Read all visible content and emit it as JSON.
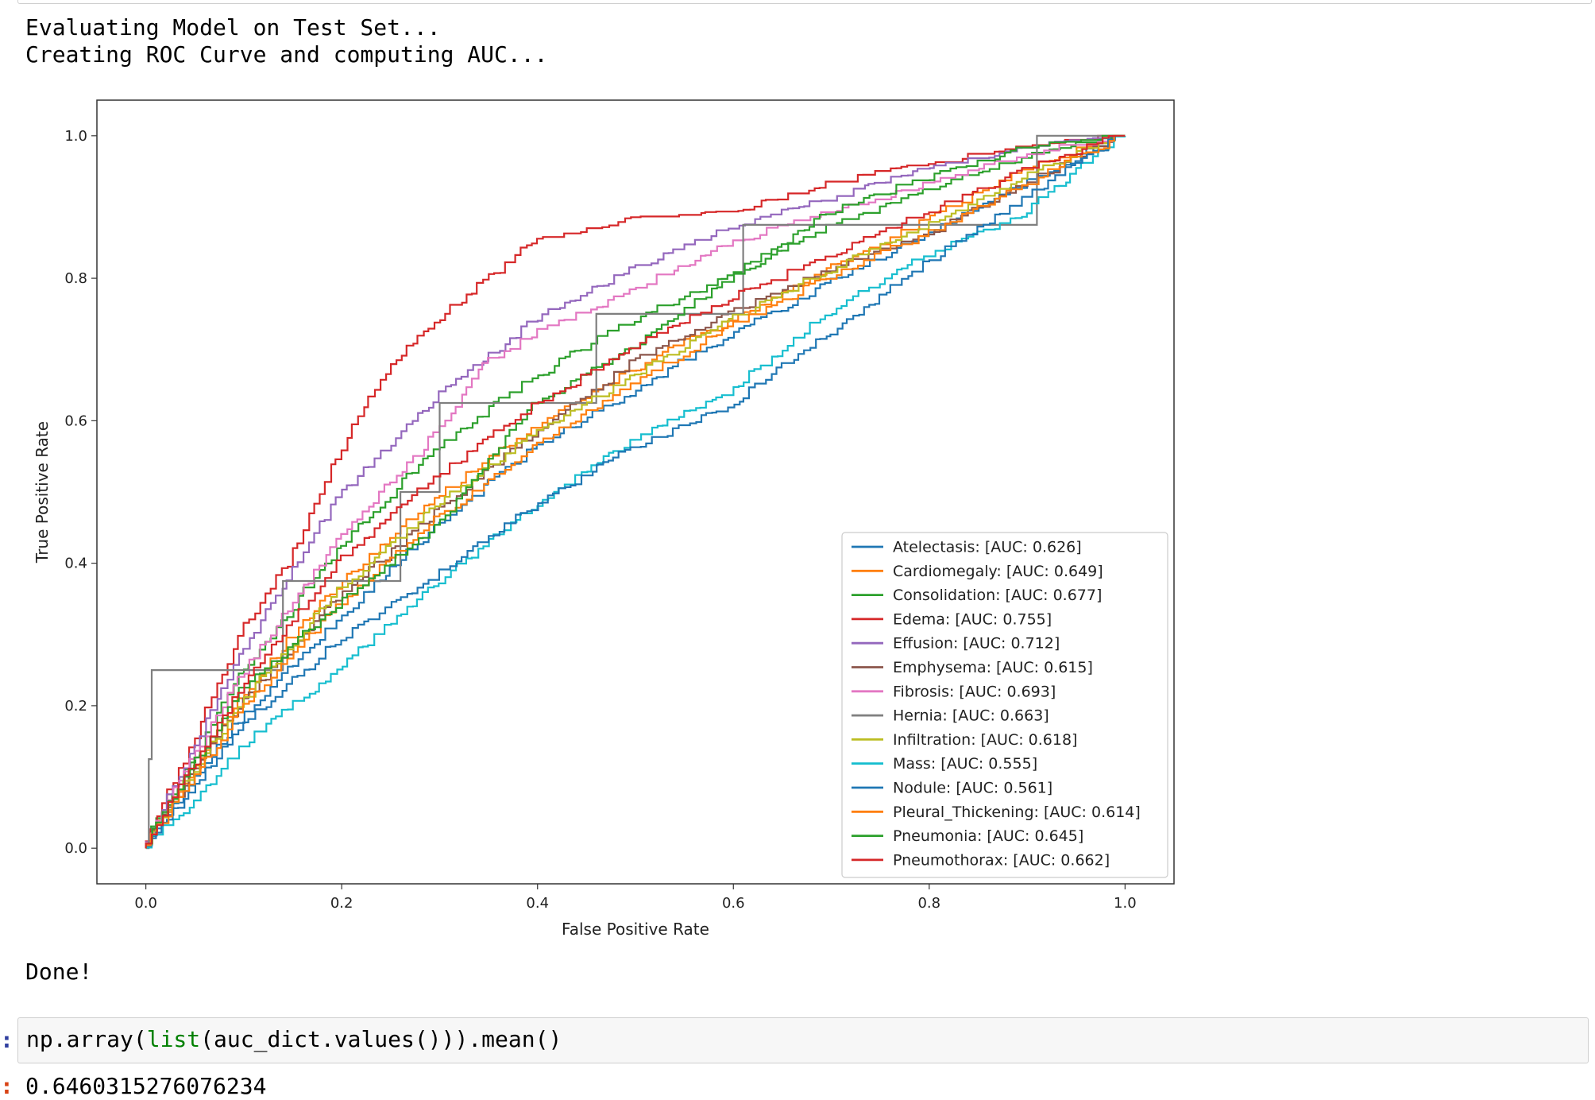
{
  "output": {
    "stream_lines": [
      "Evaluating Model on Test Set...",
      "Creating ROC Curve and computing AUC..."
    ],
    "done_text": "Done!"
  },
  "input_cell": {
    "prompt": ":",
    "code_prefix": "np.array(",
    "code_builtin": "list",
    "code_suffix": "(auc_dict.values())).mean()"
  },
  "result": {
    "prompt": ":",
    "value": "0.6460315276076234"
  },
  "chart_data": {
    "type": "line",
    "title": "",
    "xlabel": "False Positive Rate",
    "ylabel": "True Positive Rate",
    "xlim": [
      -0.05,
      1.05
    ],
    "ylim": [
      -0.05,
      1.05
    ],
    "xticks": [
      "0.0",
      "0.2",
      "0.4",
      "0.6",
      "0.8",
      "1.0"
    ],
    "yticks": [
      "0.0",
      "0.2",
      "0.4",
      "0.6",
      "0.8",
      "1.0"
    ],
    "grid": false,
    "legend_position": "lower-right",
    "series": [
      {
        "name": "Atelectasis: [AUC: 0.626]",
        "color": "#1f77b4",
        "x": [
          0,
          0.05,
          0.1,
          0.2,
          0.3,
          0.4,
          0.5,
          0.6,
          0.7,
          0.8,
          0.9,
          1.0
        ],
        "y": [
          0,
          0.09,
          0.18,
          0.32,
          0.45,
          0.56,
          0.64,
          0.72,
          0.79,
          0.86,
          0.93,
          1.0
        ]
      },
      {
        "name": "Cardiomegaly: [AUC: 0.649]",
        "color": "#ff7f0e",
        "x": [
          0,
          0.05,
          0.1,
          0.2,
          0.3,
          0.4,
          0.5,
          0.6,
          0.7,
          0.8,
          0.9,
          1.0
        ],
        "y": [
          0,
          0.1,
          0.21,
          0.37,
          0.49,
          0.59,
          0.67,
          0.74,
          0.81,
          0.88,
          0.95,
          1.0
        ]
      },
      {
        "name": "Consolidation: [AUC: 0.677]",
        "color": "#2ca02c",
        "x": [
          0,
          0.05,
          0.1,
          0.2,
          0.3,
          0.4,
          0.5,
          0.6,
          0.7,
          0.8,
          0.9,
          1.0
        ],
        "y": [
          0,
          0.12,
          0.24,
          0.42,
          0.56,
          0.66,
          0.74,
          0.8,
          0.87,
          0.92,
          0.97,
          1.0
        ]
      },
      {
        "name": "Edema: [AUC: 0.755]",
        "color": "#d62728",
        "x": [
          0,
          0.05,
          0.1,
          0.15,
          0.2,
          0.25,
          0.3,
          0.4,
          0.5,
          0.6,
          0.7,
          0.8,
          0.9,
          1.0
        ],
        "y": [
          0,
          0.14,
          0.3,
          0.4,
          0.55,
          0.67,
          0.74,
          0.85,
          0.88,
          0.89,
          0.93,
          0.96,
          0.98,
          1.0
        ]
      },
      {
        "name": "Effusion: [AUC: 0.712]",
        "color": "#9467bd",
        "x": [
          0,
          0.05,
          0.1,
          0.2,
          0.3,
          0.4,
          0.5,
          0.6,
          0.7,
          0.8,
          0.9,
          1.0
        ],
        "y": [
          0,
          0.13,
          0.27,
          0.49,
          0.63,
          0.74,
          0.81,
          0.87,
          0.91,
          0.95,
          0.98,
          1.0
        ]
      },
      {
        "name": "Emphysema: [AUC: 0.615]",
        "color": "#8c564b",
        "x": [
          0,
          0.05,
          0.1,
          0.2,
          0.3,
          0.4,
          0.5,
          0.6,
          0.7,
          0.8,
          0.9,
          1.0
        ],
        "y": [
          0,
          0.1,
          0.2,
          0.35,
          0.47,
          0.58,
          0.68,
          0.75,
          0.81,
          0.86,
          0.93,
          1.0
        ]
      },
      {
        "name": "Fibrosis: [AUC: 0.693]",
        "color": "#e377c2",
        "x": [
          0,
          0.05,
          0.1,
          0.2,
          0.3,
          0.35,
          0.4,
          0.5,
          0.6,
          0.7,
          0.8,
          0.9,
          1.0
        ],
        "y": [
          0,
          0.12,
          0.24,
          0.43,
          0.58,
          0.68,
          0.72,
          0.78,
          0.85,
          0.89,
          0.93,
          0.97,
          1.0
        ]
      },
      {
        "name": "Hernia: [AUC: 0.663]",
        "color": "#7f7f7f",
        "step": true,
        "x": [
          0,
          0.003,
          0.003,
          0.006,
          0.006,
          0.14,
          0.14,
          0.26,
          0.26,
          0.3,
          0.3,
          0.46,
          0.46,
          0.61,
          0.61,
          0.91,
          0.91,
          1.0
        ],
        "y": [
          0,
          0,
          0.125,
          0.125,
          0.25,
          0.25,
          0.375,
          0.375,
          0.5,
          0.5,
          0.625,
          0.625,
          0.75,
          0.75,
          0.875,
          0.875,
          1.0,
          1.0
        ]
      },
      {
        "name": "Infiltration: [AUC: 0.618]",
        "color": "#bcbd22",
        "x": [
          0,
          0.05,
          0.1,
          0.2,
          0.3,
          0.4,
          0.5,
          0.6,
          0.7,
          0.8,
          0.9,
          1.0
        ],
        "y": [
          0,
          0.1,
          0.2,
          0.36,
          0.48,
          0.58,
          0.66,
          0.74,
          0.81,
          0.87,
          0.94,
          1.0
        ]
      },
      {
        "name": "Mass: [AUC: 0.555]",
        "color": "#17becf",
        "x": [
          0,
          0.05,
          0.1,
          0.2,
          0.3,
          0.4,
          0.5,
          0.6,
          0.7,
          0.8,
          0.9,
          1.0
        ],
        "y": [
          0,
          0.06,
          0.14,
          0.25,
          0.37,
          0.48,
          0.57,
          0.64,
          0.75,
          0.83,
          0.89,
          1.0
        ]
      },
      {
        "name": "Nodule: [AUC: 0.561]",
        "color": "#1f77b4",
        "x": [
          0,
          0.05,
          0.1,
          0.2,
          0.3,
          0.4,
          0.5,
          0.6,
          0.7,
          0.8,
          0.9,
          1.0
        ],
        "y": [
          0,
          0.08,
          0.17,
          0.29,
          0.38,
          0.48,
          0.56,
          0.62,
          0.72,
          0.82,
          0.91,
          1.0
        ]
      },
      {
        "name": "Pleural_Thickening: [AUC: 0.614]",
        "color": "#ff7f0e",
        "x": [
          0,
          0.05,
          0.1,
          0.2,
          0.3,
          0.4,
          0.5,
          0.6,
          0.7,
          0.8,
          0.9,
          1.0
        ],
        "y": [
          0,
          0.09,
          0.19,
          0.34,
          0.46,
          0.56,
          0.65,
          0.73,
          0.8,
          0.86,
          0.93,
          1.0
        ]
      },
      {
        "name": "Pneumonia: [AUC: 0.645]",
        "color": "#2ca02c",
        "x": [
          0,
          0.05,
          0.1,
          0.2,
          0.3,
          0.4,
          0.5,
          0.6,
          0.7,
          0.8,
          0.9,
          1.0
        ],
        "y": [
          0,
          0.11,
          0.22,
          0.34,
          0.45,
          0.62,
          0.7,
          0.8,
          0.89,
          0.94,
          0.98,
          1.0
        ]
      },
      {
        "name": "Pneumothorax: [AUC: 0.662]",
        "color": "#d62728",
        "x": [
          0,
          0.05,
          0.1,
          0.2,
          0.3,
          0.4,
          0.5,
          0.6,
          0.7,
          0.8,
          0.9,
          1.0
        ],
        "y": [
          0,
          0.11,
          0.22,
          0.4,
          0.52,
          0.62,
          0.7,
          0.77,
          0.83,
          0.89,
          0.95,
          1.0
        ]
      }
    ]
  }
}
